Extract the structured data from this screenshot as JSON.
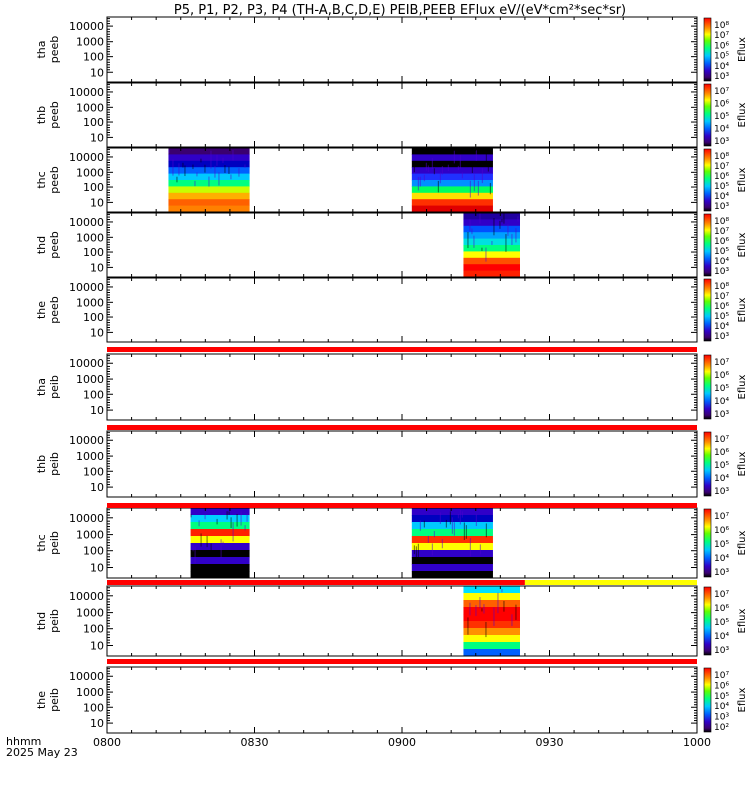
{
  "chart_data": {
    "type": "heatmap",
    "title": "P5, P1, P2, P3, P4 (TH-A,B,C,D,E) PEIB,PEEB EFlux eV/(eV*cm²*sec*sr)",
    "x_tick_labels": [
      "0800",
      "0830",
      "0900",
      "0930",
      "1000"
    ],
    "x_range_minutes": [
      0,
      120
    ],
    "footer_label_1": "hhmm",
    "footer_label_2": "2025 May 23",
    "y_tick_labels": [
      "10000",
      "1000",
      "100",
      "10"
    ],
    "colorbar_label": "Eflux",
    "panels": [
      {
        "l1": "tha",
        "l2": "peeb",
        "cb": [
          "10⁸",
          "10⁷",
          "10⁶",
          "10⁵",
          "10⁴",
          "10³"
        ],
        "blocks": []
      },
      {
        "l1": "thb",
        "l2": "peeb",
        "cb": [
          "10⁷",
          "10⁶",
          "10⁵",
          "10⁴",
          "10³"
        ],
        "blocks": []
      },
      {
        "l1": "thc",
        "l2": "peeb",
        "cb": [
          "10⁸",
          "10⁷",
          "10⁶",
          "10⁵",
          "10⁴",
          "10³"
        ],
        "blocks": [
          {
            "t0": 12.5,
            "t1": 29,
            "profile": "electron"
          },
          {
            "t0": 62,
            "t1": 78.5,
            "profile": "electron_hot"
          }
        ]
      },
      {
        "l1": "thd",
        "l2": "peeb",
        "cb": [
          "10⁸",
          "10⁷",
          "10⁶",
          "10⁵",
          "10⁴",
          "10³"
        ],
        "blocks": [
          {
            "t0": 72.5,
            "t1": 84,
            "profile": "electron_d"
          }
        ]
      },
      {
        "l1": "the",
        "l2": "peeb",
        "cb": [
          "10⁸",
          "10⁷",
          "10⁶",
          "10⁵",
          "10⁴",
          "10³"
        ],
        "blocks": []
      },
      {
        "l1": "tha",
        "l2": "peib",
        "cb": [
          "10⁷",
          "10⁶",
          "10⁵",
          "10⁴",
          "10³"
        ],
        "blocks": []
      },
      {
        "l1": "thb",
        "l2": "peib",
        "cb": [
          "10⁷",
          "10⁶",
          "10⁵",
          "10⁴",
          "10³"
        ],
        "blocks": []
      },
      {
        "l1": "thc",
        "l2": "peib",
        "cb": [
          "10⁷",
          "10⁶",
          "10⁵",
          "10⁴",
          "10³"
        ],
        "blocks": [
          {
            "t0": 17,
            "t1": 29,
            "profile": "ion"
          },
          {
            "t0": 62,
            "t1": 78.5,
            "profile": "ion2"
          }
        ]
      },
      {
        "l1": "thd",
        "l2": "peib",
        "cb": [
          "10⁷",
          "10⁶",
          "10⁵",
          "10⁴",
          "10³"
        ],
        "blocks": [
          {
            "t0": 72.5,
            "t1": 84,
            "profile": "ion_d"
          }
        ]
      },
      {
        "l1": "the",
        "l2": "peib",
        "cb": [
          "10⁷",
          "10⁶",
          "10⁵",
          "10⁴",
          "10³",
          "10²"
        ],
        "blocks": []
      }
    ],
    "status_bars": [
      {
        "after_panel": 4,
        "segments": [
          {
            "t0": 0,
            "t1": 120,
            "color": "#ff0000"
          }
        ]
      },
      {
        "after_panel": 5,
        "segments": [
          {
            "t0": 0,
            "t1": 120,
            "color": "#ff0000"
          }
        ]
      },
      {
        "after_panel": 6,
        "segments": [
          {
            "t0": 0,
            "t1": 120,
            "color": "#ff0000"
          }
        ]
      },
      {
        "after_panel": 7,
        "segments": [
          {
            "t0": 0,
            "t1": 85,
            "color": "#ff0000"
          },
          {
            "t0": 85,
            "t1": 120,
            "color": "#ffff00"
          }
        ]
      },
      {
        "after_panel": 8,
        "segments": [
          {
            "t0": 0,
            "t1": 120,
            "color": "#ff0000"
          }
        ]
      }
    ]
  }
}
